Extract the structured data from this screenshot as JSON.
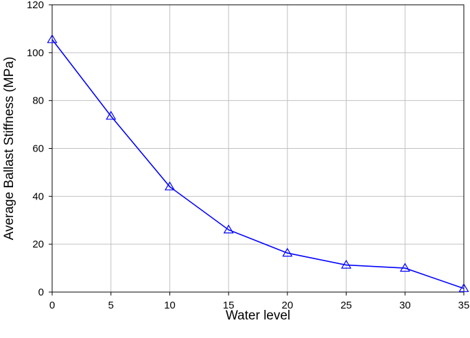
{
  "chart_data": {
    "type": "line",
    "title": "",
    "xlabel": "Water level",
    "ylabel": "Average Ballast Stiffness (MPa)",
    "xlim": [
      0,
      35
    ],
    "ylim": [
      0,
      120
    ],
    "xticks": [
      0,
      5,
      10,
      15,
      20,
      25,
      30,
      35
    ],
    "yticks": [
      0,
      20,
      40,
      60,
      80,
      100,
      120
    ],
    "grid": true,
    "series": [
      {
        "color": "#0000ff",
        "marker": "triangle-open",
        "x": [
          0,
          5,
          10,
          15,
          20,
          25,
          30,
          35
        ],
        "y": [
          105.5,
          73.5,
          44,
          26,
          16.3,
          11.3,
          10,
          1.5
        ]
      }
    ]
  }
}
